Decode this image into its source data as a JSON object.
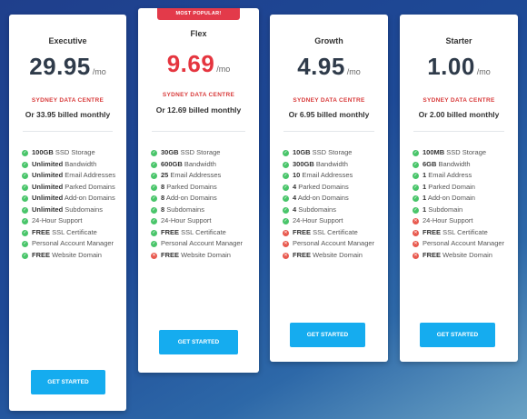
{
  "colors": {
    "check": "#49c56a",
    "cross": "#e85a4f",
    "button": "#15acef",
    "badge": "#e33a4a",
    "highlight_price": "#e5353f"
  },
  "plans": [
    {
      "name": "Executive",
      "price": "29.95",
      "per": "/mo",
      "datacentre": "SYDNEY DATA CENTRE",
      "billed": "Or 33.95 billed monthly",
      "button": "GET STARTED",
      "features": [
        {
          "bold": "100GB",
          "text": " SSD Storage",
          "included": true
        },
        {
          "bold": "Unlimited",
          "text": " Bandwidth",
          "included": true
        },
        {
          "bold": "Unlimited",
          "text": " Email Addresses",
          "included": true
        },
        {
          "bold": "Unlimited",
          "text": " Parked Domains",
          "included": true
        },
        {
          "bold": "Unlimited",
          "text": " Add-on Domains",
          "included": true
        },
        {
          "bold": "Unlimited",
          "text": " Subdomains",
          "included": true
        },
        {
          "bold": "",
          "text": "24-Hour Support",
          "included": true
        },
        {
          "bold": "FREE",
          "text": " SSL Certificate",
          "included": true
        },
        {
          "bold": "",
          "text": "Personal Account Manager",
          "included": true
        },
        {
          "bold": "FREE",
          "text": " Website Domain",
          "included": true
        }
      ]
    },
    {
      "name": "Flex",
      "badge": "MOST POPULAR!",
      "price": "9.69",
      "per": "/mo",
      "datacentre": "SYDNEY DATA CENTRE",
      "billed": "Or 12.69 billed monthly",
      "button": "GET STARTED",
      "features": [
        {
          "bold": "30GB",
          "text": " SSD Storage",
          "included": true
        },
        {
          "bold": "600GB",
          "text": " Bandwidth",
          "included": true
        },
        {
          "bold": "25",
          "text": " Email Addresses",
          "included": true
        },
        {
          "bold": "8",
          "text": " Parked Domains",
          "included": true
        },
        {
          "bold": "8",
          "text": " Add-on Domains",
          "included": true
        },
        {
          "bold": "8",
          "text": " Subdomains",
          "included": true
        },
        {
          "bold": "",
          "text": "24-Hour Support",
          "included": true
        },
        {
          "bold": "FREE",
          "text": " SSL Certificate",
          "included": true
        },
        {
          "bold": "",
          "text": "Personal Account Manager",
          "included": true
        },
        {
          "bold": "FREE",
          "text": " Website Domain",
          "included": false
        }
      ]
    },
    {
      "name": "Growth",
      "price": "4.95",
      "per": "/mo",
      "datacentre": "SYDNEY DATA CENTRE",
      "billed": "Or 6.95 billed monthly",
      "button": "GET STARTED",
      "features": [
        {
          "bold": "10GB",
          "text": " SSD Storage",
          "included": true
        },
        {
          "bold": "300GB",
          "text": " Bandwidth",
          "included": true
        },
        {
          "bold": "10",
          "text": " Email Addresses",
          "included": true
        },
        {
          "bold": "4",
          "text": " Parked Domains",
          "included": true
        },
        {
          "bold": "4",
          "text": " Add-on Domains",
          "included": true
        },
        {
          "bold": "4",
          "text": " Subdomains",
          "included": true
        },
        {
          "bold": "",
          "text": "24-Hour Support",
          "included": true
        },
        {
          "bold": "FREE",
          "text": " SSL Certificate",
          "included": false
        },
        {
          "bold": "",
          "text": "Personal Account Manager",
          "included": false
        },
        {
          "bold": "FREE",
          "text": " Website Domain",
          "included": false
        }
      ]
    },
    {
      "name": "Starter",
      "price": "1.00",
      "per": "/mo",
      "datacentre": "SYDNEY DATA CENTRE",
      "billed": "Or 2.00 billed monthly",
      "button": "GET STARTED",
      "features": [
        {
          "bold": "100MB",
          "text": " SSD Storage",
          "included": true
        },
        {
          "bold": "6GB",
          "text": " Bandwidth",
          "included": true
        },
        {
          "bold": "1",
          "text": " Email Address",
          "included": true
        },
        {
          "bold": "1",
          "text": " Parked Domain",
          "included": true
        },
        {
          "bold": "1",
          "text": " Add-on Domain",
          "included": true
        },
        {
          "bold": "1",
          "text": " Subdomain",
          "included": true
        },
        {
          "bold": "",
          "text": "24-Hour Support",
          "included": false
        },
        {
          "bold": "FREE",
          "text": " SSL Certificate",
          "included": false
        },
        {
          "bold": "",
          "text": "Personal Account Manager",
          "included": false
        },
        {
          "bold": "FREE",
          "text": " Website Domain",
          "included": false
        }
      ]
    }
  ]
}
